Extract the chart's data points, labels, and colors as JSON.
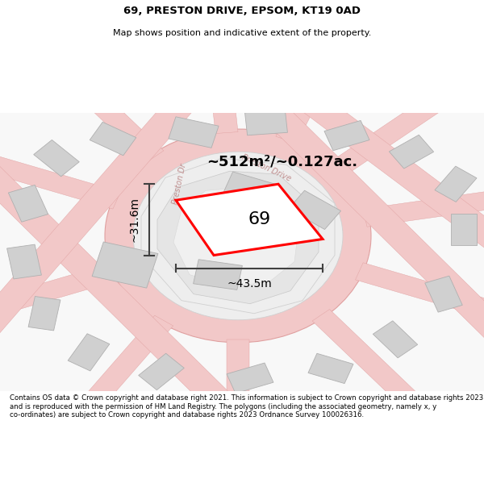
{
  "title": "69, PRESTON DRIVE, EPSOM, KT19 0AD",
  "subtitle": "Map shows position and indicative extent of the property.",
  "footer": "Contains OS data © Crown copyright and database right 2021. This information is subject to Crown copyright and database rights 2023 and is reproduced with the permission of HM Land Registry. The polygons (including the associated geometry, namely x, y co-ordinates) are subject to Crown copyright and database rights 2023 Ordnance Survey 100026316.",
  "area_label": "~512m²/~0.127ac.",
  "number_label": "69",
  "width_label": "~43.5m",
  "height_label": "~31.6m",
  "bg_color": "#f5f5f5",
  "road_fill": "#f2c8c8",
  "road_edge": "#e0a0a0",
  "bld_fill": "#d0d0d0",
  "bld_edge": "#b0b0b0",
  "inner_fill": "#e8e8e8",
  "inner_edge": "#c8c8c8",
  "plot_edge": "#ff0000",
  "plot_fill": "#ffffff",
  "dim_color": "#404040",
  "road_label_color": "#c09090",
  "text_color": "#000000"
}
